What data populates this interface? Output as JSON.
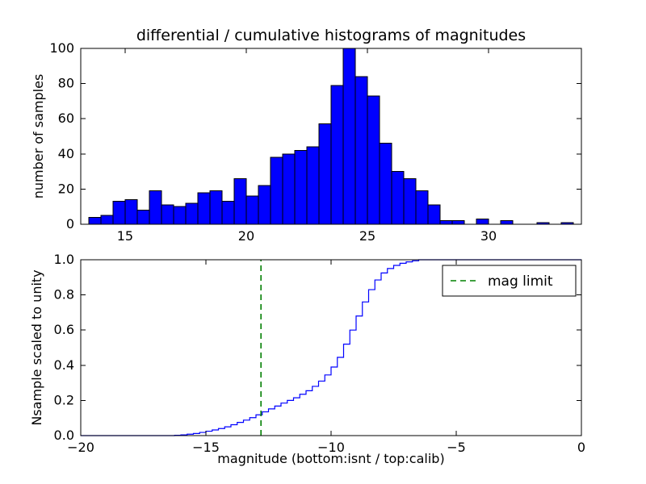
{
  "figure": {
    "background": "#ffffff",
    "frame_color": "#000000"
  },
  "chart_data": [
    {
      "type": "bar",
      "name": "differential-histogram",
      "title": "differential / cumulative histograms of magnitudes",
      "ylabel": "number of samples",
      "xlim": [
        13.17,
        33.83
      ],
      "ylim": [
        0,
        100
      ],
      "xticks": [
        15,
        20,
        25,
        30
      ],
      "xtick_labels": [
        "15",
        "20",
        "25",
        "30"
      ],
      "yticks": [
        0,
        20,
        40,
        60,
        80,
        100
      ],
      "ytick_labels": [
        "0",
        "20",
        "40",
        "60",
        "80",
        "100"
      ],
      "grid": false,
      "bin_start": 13.5,
      "bin_width": 0.5,
      "values": [
        4,
        5,
        13,
        14,
        8,
        19,
        11,
        10,
        12,
        18,
        19,
        13,
        26,
        16,
        22,
        38,
        40,
        42,
        44,
        57,
        79,
        100,
        84,
        73,
        46,
        30,
        26,
        19,
        11,
        2,
        2,
        0,
        3,
        0,
        2,
        0,
        0,
        1,
        0,
        1
      ],
      "bar_fill": "#0000ff",
      "bar_edge": "#000000"
    },
    {
      "type": "line",
      "name": "cumulative-histogram",
      "ylabel": "Nsample scaled to unity",
      "xlabel": "magnitude (bottom:isnt / top:calib)",
      "xlim": [
        -20,
        0
      ],
      "ylim": [
        0.0,
        1.0
      ],
      "xticks": [
        -20,
        -15,
        -10,
        -5,
        0
      ],
      "xtick_labels": [
        "−20",
        "−15",
        "−10",
        "−5",
        "0"
      ],
      "yticks": [
        0,
        0.2,
        0.4,
        0.6,
        0.8,
        1
      ],
      "ytick_labels": [
        "0.0",
        "0.2",
        "0.4",
        "0.6",
        "0.8",
        "1.0"
      ],
      "grid": false,
      "step_x_start": -16.5,
      "step_x_step": 0.25,
      "cumulative": [
        0.0,
        0.002,
        0.004,
        0.008,
        0.012,
        0.018,
        0.025,
        0.032,
        0.04,
        0.05,
        0.062,
        0.075,
        0.088,
        0.102,
        0.118,
        0.135,
        0.152,
        0.168,
        0.185,
        0.2,
        0.215,
        0.235,
        0.255,
        0.28,
        0.31,
        0.345,
        0.39,
        0.445,
        0.52,
        0.6,
        0.68,
        0.76,
        0.83,
        0.885,
        0.925,
        0.95,
        0.968,
        0.98,
        0.988,
        0.994,
        1.0
      ],
      "line_color": "#0000ff",
      "vline": {
        "x": -12.8,
        "color": "#008000",
        "style": "dashed"
      },
      "legend": {
        "label": "mag limit",
        "position": "upper right",
        "line_color": "#008000",
        "line_style": "dashed"
      }
    }
  ]
}
